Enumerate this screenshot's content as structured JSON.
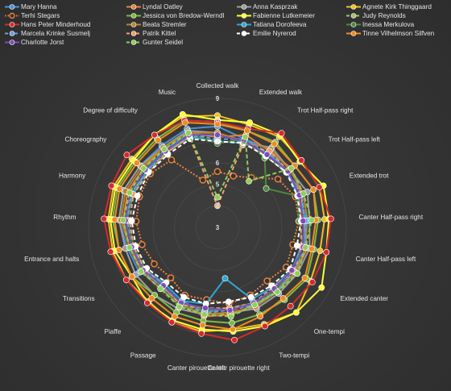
{
  "chart_data": {
    "type": "radar",
    "title": "",
    "rmin": 3,
    "rmax": 9,
    "axis_tick_labels": [
      "3",
      "4",
      "5",
      "6",
      "7",
      "8",
      "9"
    ],
    "grid": true,
    "legend_position": "top",
    "categories": [
      "Collected walk",
      "Extended walk",
      "Trot Half-pass right",
      "Trot Half-pass left",
      "Extended trot",
      "Canter Half-pass right",
      "Canter Half-pass left",
      "Extended canter",
      "One-tempi",
      "Two-tempi",
      "Canter pirouette right",
      "Canter pirouette left",
      "Passage",
      "Piaffe",
      "Transitions",
      "Entrance and halts",
      "Rhythm",
      "Harmony",
      "Choreography",
      "Degree of difficulty",
      "Music"
    ],
    "series": [
      {
        "name": "Mary Hanna",
        "color": "#4a90d9",
        "dash": false,
        "values": [
          7.7,
          7.3,
          7.4,
          7.1,
          7.3,
          7.2,
          7.1,
          7.0,
          7.1,
          7.0,
          6.8,
          7.0,
          6.8,
          6.6,
          7.2,
          7.3,
          7.6,
          7.7,
          7.6,
          7.6,
          7.8
        ]
      },
      {
        "name": "Lyndal Oatley",
        "color": "#e8823a",
        "dash": false,
        "values": [
          7.2,
          7.5,
          7.3,
          7.4,
          7.2,
          7.0,
          7.3,
          7.2,
          7.0,
          7.1,
          7.1,
          7.2,
          6.9,
          6.8,
          7.0,
          7.2,
          7.4,
          7.5,
          7.4,
          7.5,
          7.6
        ]
      },
      {
        "name": "Anna Kasprzak",
        "color": "#9e9e9e",
        "dash": false,
        "values": [
          7.4,
          7.1,
          7.5,
          7.3,
          7.5,
          7.3,
          7.4,
          7.3,
          7.2,
          7.2,
          7.0,
          7.1,
          7.2,
          7.3,
          7.4,
          7.4,
          7.6,
          7.7,
          7.6,
          7.5,
          7.7
        ]
      },
      {
        "name": "Agnete Kirk Thinggaard",
        "color": "#f2c021",
        "dash": false,
        "values": [
          8.2,
          8.0,
          8.1,
          8.0,
          8.1,
          8.0,
          7.9,
          8.0,
          8.4,
          8.0,
          7.8,
          7.9,
          7.9,
          7.7,
          7.9,
          8.0,
          8.1,
          8.2,
          8.1,
          8.2,
          8.4
        ]
      },
      {
        "name": "Terhi Stegars",
        "color": "#e8823a",
        "dash": "dot",
        "values": [
          5.6,
          5.5,
          5.8,
          6.6,
          6.9,
          6.8,
          6.6,
          6.7,
          6.4,
          6.5,
          6.6,
          6.4,
          6.5,
          6.2,
          6.4,
          6.6,
          6.8,
          6.9,
          7.0,
          6.8,
          5.3
        ]
      },
      {
        "name": "Jessica von Bredow-Werndl",
        "color": "#7dbb42",
        "dash": false,
        "values": [
          7.9,
          7.7,
          7.8,
          7.6,
          7.8,
          7.7,
          7.6,
          7.8,
          7.6,
          7.5,
          7.5,
          7.4,
          7.4,
          7.3,
          7.6,
          7.7,
          7.9,
          8.0,
          7.9,
          8.0,
          8.2
        ]
      },
      {
        "name": "Fabienne Lutkemeier",
        "color": "#ffff33",
        "dash": false,
        "values": [
          8.0,
          8.1,
          8.2,
          7.9,
          8.3,
          8.2,
          8.2,
          8.6,
          8.4,
          8.1,
          7.9,
          7.8,
          7.8,
          7.8,
          7.6,
          7.9,
          8.0,
          8.1,
          8.0,
          8.2,
          8.5
        ]
      },
      {
        "name": "Judy Reynolds",
        "color": "#a8c06e",
        "dash": "dash",
        "values": [
          7.3,
          7.2,
          7.0,
          7.1,
          7.2,
          7.1,
          7.0,
          7.2,
          7.0,
          7.0,
          7.1,
          7.0,
          7.1,
          6.8,
          7.0,
          7.1,
          7.3,
          7.3,
          7.2,
          7.2,
          7.4
        ]
      },
      {
        "name": "Hans Peter Minderhoud",
        "color": "#d62a2a",
        "dash": false,
        "values": [
          7.9,
          7.8,
          8.3,
          8.0,
          8.1,
          8.3,
          8.2,
          8.1,
          8.0,
          8.1,
          8.3,
          8.0,
          7.9,
          7.8,
          7.9,
          8.1,
          8.3,
          8.3,
          8.4,
          8.2,
          8.2
        ]
      },
      {
        "name": "Beata Stremler",
        "color": "#b8862e",
        "dash": false,
        "values": [
          7.4,
          7.2,
          7.4,
          7.3,
          7.3,
          7.2,
          7.2,
          7.2,
          7.1,
          7.1,
          7.0,
          7.1,
          7.0,
          6.9,
          7.1,
          7.2,
          7.5,
          7.6,
          7.5,
          7.5,
          7.6
        ]
      },
      {
        "name": "Tatiana Dorofeeva",
        "color": "#2fa5d6",
        "dash": false,
        "values": [
          7.0,
          7.1,
          7.2,
          7.2,
          7.0,
          7.2,
          7.0,
          7.0,
          6.8,
          6.7,
          5.4,
          6.6,
          6.8,
          6.6,
          6.9,
          7.1,
          7.3,
          7.2,
          7.2,
          7.3,
          7.4
        ]
      },
      {
        "name": "Inessa Merkulova",
        "color": "#4c8a3a",
        "dash": false,
        "values": [
          6.9,
          7.3,
          6.9,
          5.9,
          7.0,
          6.8,
          7.1,
          7.0,
          7.0,
          6.9,
          6.8,
          6.9,
          7.0,
          6.8,
          6.9,
          7.0,
          7.2,
          7.3,
          7.4,
          7.3,
          7.6
        ]
      },
      {
        "name": "Marcela Krinke Susmelj",
        "color": "#6a9fd9",
        "dash": "dash",
        "values": [
          7.1,
          7.3,
          7.2,
          7.1,
          7.2,
          7.1,
          7.2,
          7.1,
          7.1,
          7.0,
          6.9,
          7.0,
          6.9,
          6.8,
          7.0,
          7.1,
          7.2,
          7.3,
          7.2,
          7.4,
          7.5
        ]
      },
      {
        "name": "Patrik Kittel",
        "color": "#f0a070",
        "dash": "dash",
        "values": [
          4.0,
          7.0,
          7.3,
          7.2,
          7.1,
          6.9,
          7.0,
          7.1,
          6.8,
          6.9,
          6.8,
          6.8,
          7.0,
          6.7,
          6.9,
          7.0,
          7.1,
          7.2,
          7.1,
          7.2,
          7.4
        ]
      },
      {
        "name": "Emilie Nyrerod",
        "color": "#ffffff",
        "dash": "dash",
        "values": [
          7.0,
          7.1,
          7.0,
          7.1,
          7.0,
          6.9,
          6.8,
          6.9,
          6.7,
          6.6,
          6.5,
          6.6,
          6.6,
          6.5,
          6.8,
          6.9,
          7.0,
          7.0,
          7.1,
          7.1,
          7.3
        ]
      },
      {
        "name": "Tinne Vilhelmson Silfven",
        "color": "#f08c1e",
        "dash": false,
        "values": [
          7.8,
          7.7,
          7.7,
          7.6,
          7.8,
          7.6,
          7.5,
          7.7,
          7.5,
          7.6,
          7.8,
          7.6,
          7.6,
          7.5,
          7.6,
          7.7,
          7.8,
          7.9,
          7.8,
          7.9,
          8.1
        ]
      },
      {
        "name": "Charlotte Jorst",
        "color": "#7b4fb8",
        "dash": false,
        "values": [
          7.3,
          7.2,
          7.1,
          7.2,
          7.1,
          7.0,
          7.1,
          7.0,
          6.9,
          6.9,
          6.9,
          6.8,
          6.9,
          6.7,
          7.0,
          7.1,
          7.3,
          7.4,
          7.3,
          7.3,
          7.5
        ]
      },
      {
        "name": "Gunter Seidel",
        "color": "#8fcf5a",
        "dash": "dash",
        "values": [
          4.4,
          7.4,
          5.6,
          7.4,
          7.3,
          7.4,
          7.2,
          7.3,
          7.1,
          7.0,
          7.2,
          7.1,
          7.1,
          6.9,
          7.1,
          7.2,
          7.4,
          7.4,
          7.4,
          7.4,
          7.6
        ]
      }
    ]
  }
}
